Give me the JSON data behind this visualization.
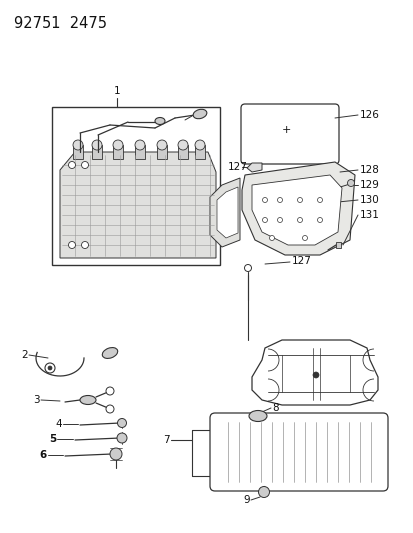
{
  "title": "92751  2475",
  "bg_color": "#ffffff",
  "line_color": "#333333",
  "text_color": "#111111",
  "fig_width": 4.14,
  "fig_height": 5.33,
  "dpi": 100
}
